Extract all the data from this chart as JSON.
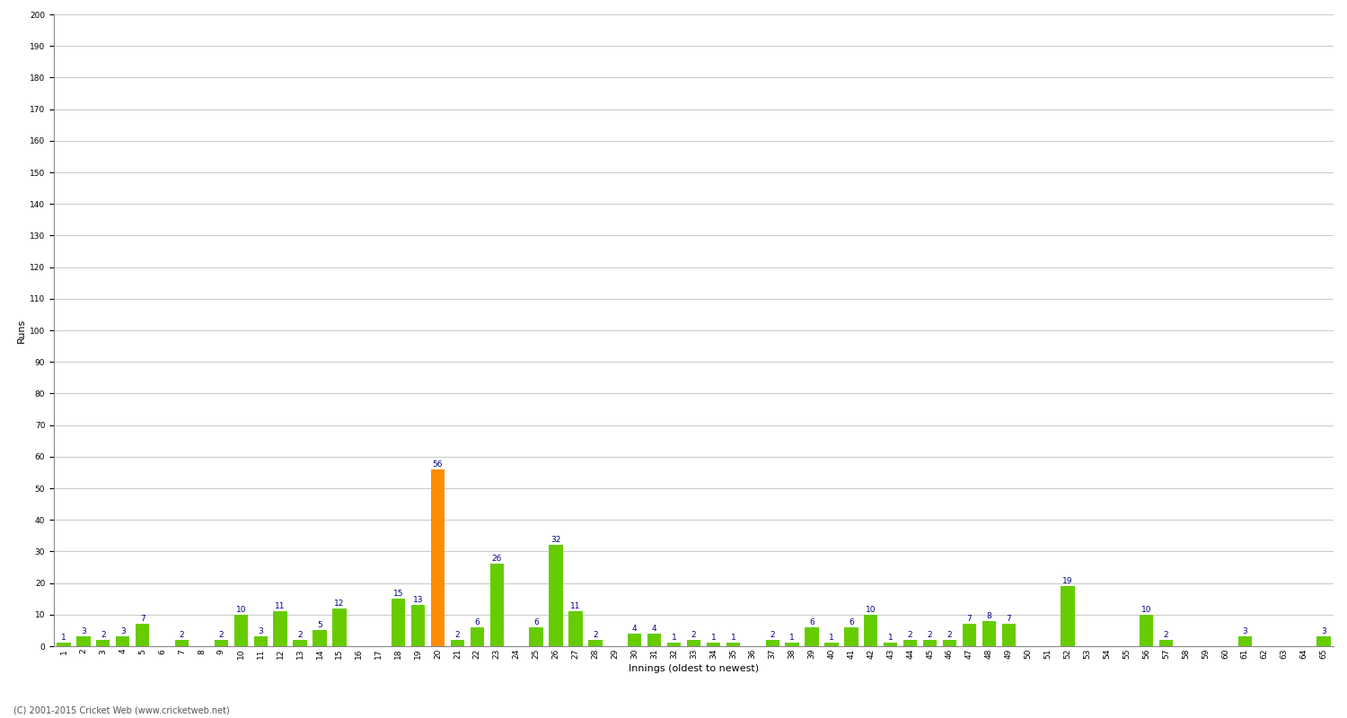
{
  "innings": [
    1,
    2,
    3,
    4,
    5,
    6,
    7,
    8,
    9,
    10,
    11,
    12,
    13,
    14,
    15,
    16,
    17,
    18,
    19,
    20,
    21,
    22,
    23,
    24,
    25,
    26,
    27,
    28,
    29,
    30,
    31,
    32,
    33,
    34,
    35,
    36,
    37,
    38,
    39,
    40,
    41,
    42,
    43,
    44,
    45,
    46,
    47,
    48,
    49,
    50,
    51,
    52,
    53,
    54,
    55,
    56,
    57,
    58,
    59,
    60,
    61,
    62,
    63,
    64,
    65
  ],
  "runs": [
    1,
    3,
    2,
    3,
    7,
    0,
    2,
    0,
    2,
    10,
    3,
    11,
    2,
    5,
    12,
    0,
    0,
    15,
    13,
    56,
    2,
    6,
    26,
    0,
    6,
    32,
    11,
    2,
    0,
    4,
    4,
    1,
    2,
    1,
    1,
    0,
    2,
    1,
    6,
    1,
    6,
    10,
    1,
    2,
    2,
    2,
    7,
    8,
    7,
    0,
    0,
    19,
    0,
    0,
    0,
    10,
    2,
    0,
    0,
    0,
    3,
    0,
    0,
    0,
    3
  ],
  "highlight_index": 19,
  "bar_color_normal": "#66cc00",
  "bar_color_highlight": "#ff8c00",
  "xlabel": "Innings (oldest to newest)",
  "ylabel": "Runs",
  "ylim": [
    0,
    200
  ],
  "yticks": [
    0,
    10,
    20,
    30,
    40,
    50,
    60,
    70,
    80,
    90,
    100,
    110,
    120,
    130,
    140,
    150,
    160,
    170,
    180,
    190,
    200
  ],
  "background_color": "#ffffff",
  "grid_color": "#cccccc",
  "value_label_color": "#000080",
  "value_label_fontsize": 6.5,
  "tick_label_fontsize": 6.5,
  "axis_label_fontsize": 8,
  "footer_text": "(C) 2001-2015 Cricket Web (www.cricketweb.net)"
}
